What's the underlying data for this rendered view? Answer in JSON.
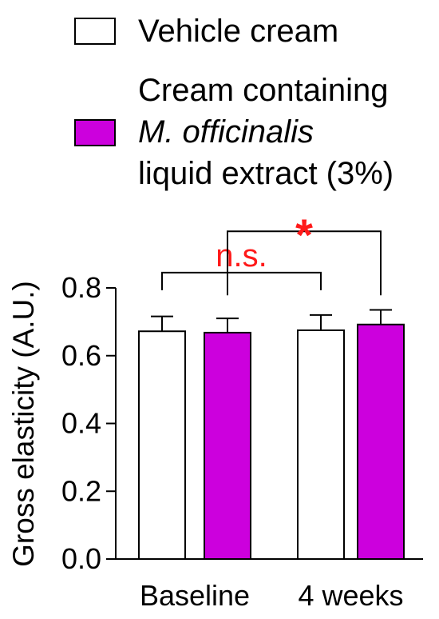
{
  "legend": {
    "items": [
      {
        "label_lines": [
          "Vehicle cream"
        ],
        "italic_line": -1,
        "color": "#ffffff"
      },
      {
        "label_lines": [
          "Cream containing",
          "M. officinalis",
          "liquid extract (3%)"
        ],
        "italic_line": 1,
        "color": "#cc00dd"
      }
    ]
  },
  "chart_data": {
    "type": "bar",
    "title": "",
    "xlabel": "",
    "ylabel": "Gross elasticity (A.U.)",
    "ylim": [
      0,
      0.8
    ],
    "yticks": [
      "0.0",
      "0.2",
      "0.4",
      "0.6",
      "0.8"
    ],
    "categories": [
      "Baseline",
      "4 weeks"
    ],
    "series": [
      {
        "name": "Vehicle cream",
        "color": "#ffffff",
        "values": [
          0.672,
          0.675
        ],
        "errors": [
          0.044,
          0.045
        ]
      },
      {
        "name": "Cream containing M. officinalis liquid extract (3%)",
        "color": "#cc00dd",
        "values": [
          0.668,
          0.692
        ],
        "errors": [
          0.042,
          0.043
        ]
      }
    ],
    "annotations": [
      {
        "text": "n.s.",
        "from": {
          "category": 0,
          "series": 0
        },
        "to": {
          "category": 1,
          "series": 0
        },
        "color": "#ff1a1a"
      },
      {
        "text": "*",
        "from": {
          "category": 0,
          "series": 1
        },
        "to": {
          "category": 1,
          "series": 1
        },
        "color": "#ff1a1a"
      }
    ]
  }
}
